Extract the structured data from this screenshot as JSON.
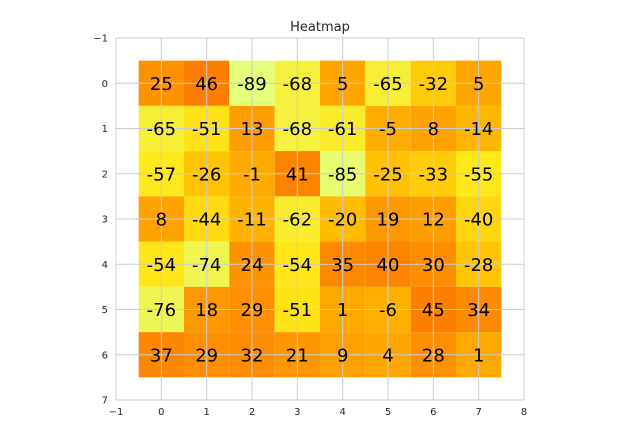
{
  "chart_data": {
    "type": "heatmap",
    "title": "Heatmap",
    "xlabel": "",
    "ylabel": "",
    "xlim": [
      -1,
      8
    ],
    "ylim": [
      7,
      -1
    ],
    "x_ticks": [
      -1,
      0,
      1,
      2,
      3,
      4,
      5,
      6,
      7,
      8
    ],
    "y_ticks": [
      -1,
      0,
      1,
      2,
      3,
      4,
      5,
      6,
      7
    ],
    "grid": true,
    "colormap": "Wistia",
    "value_range": [
      -89,
      46
    ],
    "colors": {
      "low": "#e4ff7a",
      "mid_low": "#ffe81a",
      "mid": "#ffbd00",
      "high": "#fc7f00",
      "grid": "#cccccc",
      "background": "#ffffff"
    },
    "values": [
      [
        25,
        46,
        -89,
        -68,
        5,
        -65,
        -32,
        5
      ],
      [
        -65,
        -51,
        13,
        -68,
        -61,
        -5,
        8,
        -14
      ],
      [
        -57,
        -26,
        -1,
        41,
        -85,
        -25,
        -33,
        -55
      ],
      [
        8,
        -44,
        -11,
        -62,
        -20,
        19,
        12,
        -40
      ],
      [
        -54,
        -74,
        24,
        -54,
        35,
        40,
        30,
        -28
      ],
      [
        -76,
        18,
        29,
        -51,
        1,
        -6,
        45,
        34
      ],
      [
        37,
        29,
        32,
        21,
        9,
        4,
        28,
        1
      ]
    ]
  }
}
